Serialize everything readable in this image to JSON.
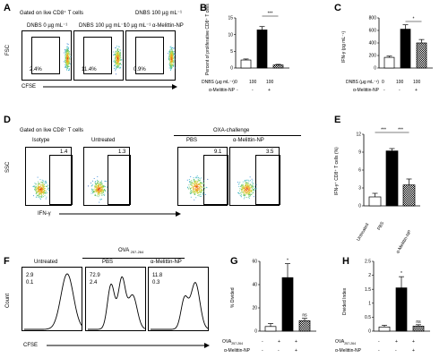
{
  "A": {
    "label": "A",
    "header": "Gated on live CD8⁺ T cells",
    "ylabel": "FSC",
    "xlabel": "CFSE",
    "panels": [
      {
        "top": "DNBS 0 µg mL⁻¹",
        "pct": "2.4%"
      },
      {
        "top": "DNBS 100 µg mL⁻¹",
        "pct": "11.4%"
      },
      {
        "top_line1": "DNBS 100 µg mL⁻¹",
        "top_line2": "10 µg mL⁻¹ α-Melittin-NP",
        "pct": "0.9%"
      }
    ]
  },
  "B": {
    "label": "B",
    "ylabel": "Percent of proliferative CD8⁺ T cells",
    "sig": "***",
    "row1_label": "DNBS (µg mL⁻¹)",
    "row1": [
      "0",
      "100",
      "100"
    ],
    "row2_label": "α-Melittin-NP",
    "row2": [
      "-",
      "-",
      "+"
    ]
  },
  "C": {
    "label": "C",
    "ylabel": "IFN-γ (pg mL⁻¹)",
    "sig": "*",
    "row1_label": "DNBS (µg mL⁻¹)",
    "row1": [
      "0",
      "100",
      "100"
    ],
    "row2_label": "α-Melittin-NP",
    "row2": [
      "-",
      "-",
      "+"
    ]
  },
  "D": {
    "label": "D",
    "header": "Gated on live CD8⁺ T cells",
    "group": "OXA-challenge",
    "ylabel": "SSC",
    "xlabel": "IFN-γ",
    "panels": [
      {
        "name": "Isotype",
        "val": "1.4"
      },
      {
        "name": "Untreated",
        "val": "1.3"
      },
      {
        "name": "PBS",
        "val": "9.1"
      },
      {
        "name": "α-Melittin-NP",
        "val": "3.5"
      }
    ]
  },
  "E": {
    "label": "E",
    "ylabel": "IFN-γ⁺ CD8⁺ T cells  (%)",
    "sig1": "***",
    "sig2": "***",
    "cats": [
      "Untreated",
      "PBS",
      "α-Melittin-NP"
    ]
  },
  "F": {
    "label": "F",
    "group": "OVA",
    "group_sub": "257-264",
    "ylabel": "Count",
    "xlabel": "CFSE",
    "panels": [
      {
        "name": "Untreated",
        "v1": "2.9",
        "v2": "0.1"
      },
      {
        "name": "PBS",
        "v1": "72.9",
        "v2": "2.4"
      },
      {
        "name": "α-Melittin-NP",
        "v1": "11.8",
        "v2": "0.3"
      }
    ]
  },
  "G": {
    "label": "G",
    "ylabel": "% Divided",
    "sig_top": "*",
    "sig_ns": "ns",
    "row1_label": "OVA",
    "row1_sub": "257-264",
    "row1": [
      "-",
      "+",
      "+"
    ],
    "row2_label": "α-Melittin-NP",
    "row2": [
      "-",
      "-",
      "+"
    ]
  },
  "H": {
    "label": "H",
    "ylabel": "Divided Index",
    "sig_top": "*",
    "sig_ns": "ns",
    "row1_label": "OVA",
    "row1_sub": "257-264",
    "row1": [
      "-",
      "+",
      "+"
    ],
    "row2_label": "α-Melittin-NP",
    "row2": [
      "-",
      "-",
      "+"
    ]
  },
  "chart_data": [
    {
      "panel": "B",
      "type": "bar",
      "categories": [
        "DNBS 0",
        "DNBS 100",
        "DNBS 100 + α-Melittin-NP"
      ],
      "values": [
        2.4,
        11.4,
        0.9
      ],
      "errors": [
        0.3,
        1.0,
        0.2
      ],
      "ylim": [
        0,
        15
      ],
      "yticks": [
        0,
        5,
        10,
        15
      ],
      "fills": [
        "white",
        "black",
        "checker"
      ]
    },
    {
      "panel": "C",
      "type": "bar",
      "categories": [
        "DNBS 0",
        "DNBS 100",
        "DNBS 100 + α-Melittin-NP"
      ],
      "values": [
        170,
        620,
        400
      ],
      "errors": [
        20,
        70,
        55
      ],
      "ylim": [
        0,
        800
      ],
      "yticks": [
        0,
        200,
        400,
        600,
        800
      ],
      "fills": [
        "white",
        "black",
        "checker"
      ]
    },
    {
      "panel": "E",
      "type": "bar",
      "categories": [
        "Untreated",
        "PBS",
        "α-Melittin-NP"
      ],
      "values": [
        1.5,
        9.2,
        3.5
      ],
      "errors": [
        0.6,
        0.4,
        1.0
      ],
      "ylim": [
        0,
        12
      ],
      "yticks": [
        0,
        3,
        6,
        9,
        12
      ],
      "fills": [
        "white",
        "black",
        "checker"
      ]
    },
    {
      "panel": "G",
      "type": "bar",
      "categories": [
        "- / -",
        "+ / -",
        "+ / +"
      ],
      "values": [
        4,
        46,
        9
      ],
      "errors": [
        2.5,
        12,
        2
      ],
      "ylim": [
        0,
        60
      ],
      "yticks": [
        0,
        20,
        40,
        60
      ],
      "fills": [
        "white",
        "black",
        "checker"
      ]
    },
    {
      "panel": "H",
      "type": "bar",
      "categories": [
        "- / -",
        "+ / -",
        "+ / +"
      ],
      "values": [
        0.15,
        1.55,
        0.18
      ],
      "errors": [
        0.06,
        0.4,
        0.05
      ],
      "ylim": [
        0,
        2.5
      ],
      "yticks": [
        0,
        0.5,
        1,
        1.5,
        2,
        2.5
      ],
      "fills": [
        "white",
        "black",
        "checker"
      ]
    }
  ]
}
